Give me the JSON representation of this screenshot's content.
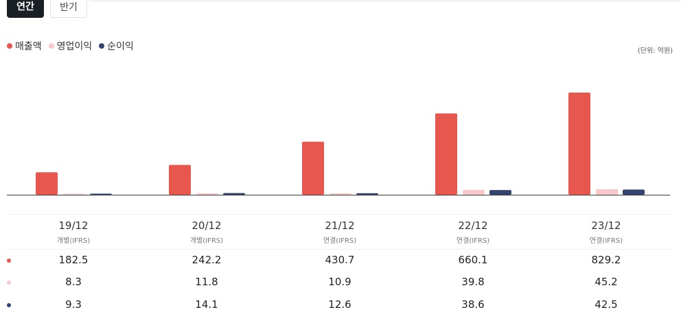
{
  "tabs": [
    {
      "label": "연간",
      "active": true
    },
    {
      "label": "반기",
      "active": false
    }
  ],
  "unit_label": "(단위: 억원)",
  "colors": {
    "revenue": "#e8574d",
    "operating_profit": "#f8c9cb",
    "net_income": "#34446f",
    "tab_active_bg": "#1a1e25"
  },
  "chart_data": {
    "type": "bar",
    "categories": [
      "19/12",
      "20/12",
      "21/12",
      "22/12",
      "23/12"
    ],
    "category_notes": [
      "개별(IFRS)",
      "개별(IFRS)",
      "연결(IFRS)",
      "연결(IFRS)",
      "연결(IFRS)"
    ],
    "series": [
      {
        "name": "매출액",
        "values": [
          182.5,
          242.2,
          430.7,
          660.1,
          829.2
        ]
      },
      {
        "name": "영업이익",
        "values": [
          8.3,
          11.8,
          10.9,
          39.8,
          45.2
        ]
      },
      {
        "name": "순이익",
        "values": [
          9.3,
          14.1,
          12.6,
          38.6,
          42.5
        ]
      }
    ],
    "legend_position": "top-left",
    "grid": false,
    "value_table": true
  }
}
